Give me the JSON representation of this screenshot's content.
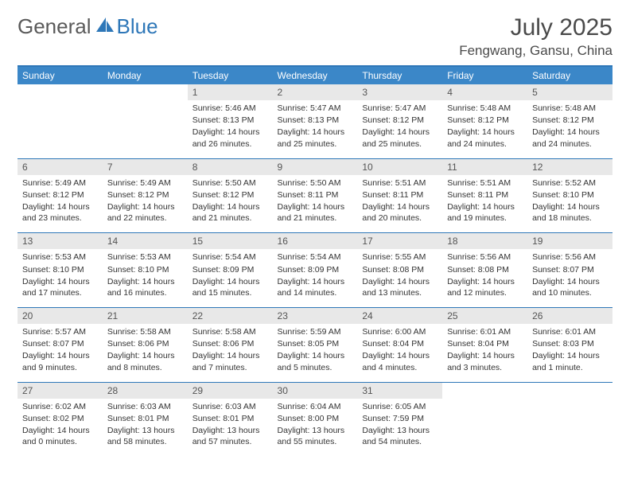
{
  "brand": {
    "part1": "General",
    "part2": "Blue"
  },
  "title": "July 2025",
  "location": "Fengwang, Gansu, China",
  "colors": {
    "header_bg": "#3b87c8",
    "header_border": "#2e77b8",
    "daynum_bg": "#e8e8e8",
    "text": "#333333",
    "logo_gray": "#5a5a5a",
    "logo_blue": "#2e77b8"
  },
  "day_names": [
    "Sunday",
    "Monday",
    "Tuesday",
    "Wednesday",
    "Thursday",
    "Friday",
    "Saturday"
  ],
  "layout": {
    "first_weekday_index": 2,
    "days_in_month": 31
  },
  "days": {
    "1": {
      "sunrise": "5:46 AM",
      "sunset": "8:13 PM",
      "daylight": "14 hours and 26 minutes."
    },
    "2": {
      "sunrise": "5:47 AM",
      "sunset": "8:13 PM",
      "daylight": "14 hours and 25 minutes."
    },
    "3": {
      "sunrise": "5:47 AM",
      "sunset": "8:12 PM",
      "daylight": "14 hours and 25 minutes."
    },
    "4": {
      "sunrise": "5:48 AM",
      "sunset": "8:12 PM",
      "daylight": "14 hours and 24 minutes."
    },
    "5": {
      "sunrise": "5:48 AM",
      "sunset": "8:12 PM",
      "daylight": "14 hours and 24 minutes."
    },
    "6": {
      "sunrise": "5:49 AM",
      "sunset": "8:12 PM",
      "daylight": "14 hours and 23 minutes."
    },
    "7": {
      "sunrise": "5:49 AM",
      "sunset": "8:12 PM",
      "daylight": "14 hours and 22 minutes."
    },
    "8": {
      "sunrise": "5:50 AM",
      "sunset": "8:12 PM",
      "daylight": "14 hours and 21 minutes."
    },
    "9": {
      "sunrise": "5:50 AM",
      "sunset": "8:11 PM",
      "daylight": "14 hours and 21 minutes."
    },
    "10": {
      "sunrise": "5:51 AM",
      "sunset": "8:11 PM",
      "daylight": "14 hours and 20 minutes."
    },
    "11": {
      "sunrise": "5:51 AM",
      "sunset": "8:11 PM",
      "daylight": "14 hours and 19 minutes."
    },
    "12": {
      "sunrise": "5:52 AM",
      "sunset": "8:10 PM",
      "daylight": "14 hours and 18 minutes."
    },
    "13": {
      "sunrise": "5:53 AM",
      "sunset": "8:10 PM",
      "daylight": "14 hours and 17 minutes."
    },
    "14": {
      "sunrise": "5:53 AM",
      "sunset": "8:10 PM",
      "daylight": "14 hours and 16 minutes."
    },
    "15": {
      "sunrise": "5:54 AM",
      "sunset": "8:09 PM",
      "daylight": "14 hours and 15 minutes."
    },
    "16": {
      "sunrise": "5:54 AM",
      "sunset": "8:09 PM",
      "daylight": "14 hours and 14 minutes."
    },
    "17": {
      "sunrise": "5:55 AM",
      "sunset": "8:08 PM",
      "daylight": "14 hours and 13 minutes."
    },
    "18": {
      "sunrise": "5:56 AM",
      "sunset": "8:08 PM",
      "daylight": "14 hours and 12 minutes."
    },
    "19": {
      "sunrise": "5:56 AM",
      "sunset": "8:07 PM",
      "daylight": "14 hours and 10 minutes."
    },
    "20": {
      "sunrise": "5:57 AM",
      "sunset": "8:07 PM",
      "daylight": "14 hours and 9 minutes."
    },
    "21": {
      "sunrise": "5:58 AM",
      "sunset": "8:06 PM",
      "daylight": "14 hours and 8 minutes."
    },
    "22": {
      "sunrise": "5:58 AM",
      "sunset": "8:06 PM",
      "daylight": "14 hours and 7 minutes."
    },
    "23": {
      "sunrise": "5:59 AM",
      "sunset": "8:05 PM",
      "daylight": "14 hours and 5 minutes."
    },
    "24": {
      "sunrise": "6:00 AM",
      "sunset": "8:04 PM",
      "daylight": "14 hours and 4 minutes."
    },
    "25": {
      "sunrise": "6:01 AM",
      "sunset": "8:04 PM",
      "daylight": "14 hours and 3 minutes."
    },
    "26": {
      "sunrise": "6:01 AM",
      "sunset": "8:03 PM",
      "daylight": "14 hours and 1 minute."
    },
    "27": {
      "sunrise": "6:02 AM",
      "sunset": "8:02 PM",
      "daylight": "14 hours and 0 minutes."
    },
    "28": {
      "sunrise": "6:03 AM",
      "sunset": "8:01 PM",
      "daylight": "13 hours and 58 minutes."
    },
    "29": {
      "sunrise": "6:03 AM",
      "sunset": "8:01 PM",
      "daylight": "13 hours and 57 minutes."
    },
    "30": {
      "sunrise": "6:04 AM",
      "sunset": "8:00 PM",
      "daylight": "13 hours and 55 minutes."
    },
    "31": {
      "sunrise": "6:05 AM",
      "sunset": "7:59 PM",
      "daylight": "13 hours and 54 minutes."
    }
  },
  "labels": {
    "sunrise": "Sunrise:",
    "sunset": "Sunset:",
    "daylight": "Daylight:"
  }
}
